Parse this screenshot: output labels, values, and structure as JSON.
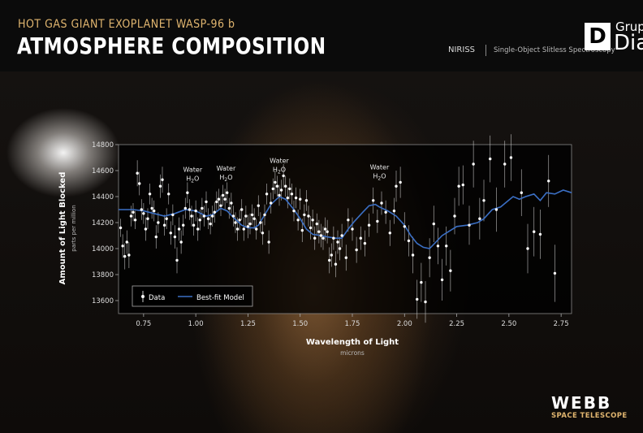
{
  "header": {
    "pre_title": "HOT GAS GIANT EXOPLANET WASP-96 b",
    "title": "ATMOSPHERE COMPOSITION",
    "instrument": "NIRISS",
    "technique": "Single-Object Slitless Spectroscopy"
  },
  "watermark": {
    "mark": "D",
    "top": "Grupo",
    "bottom": "Dia"
  },
  "brand": {
    "name": "WEBB",
    "subtitle": "SPACE TELESCOPE"
  },
  "colors": {
    "accent": "#e0b56f",
    "model": "#3b6fc4",
    "data": "#ffffff"
  },
  "chart_data": {
    "type": "scatter",
    "title": "",
    "xlabel": "Wavelength of Light",
    "xlabel_unit": "microns",
    "ylabel": "Amount of Light Blocked",
    "ylabel_unit": "parts per million",
    "xlim": [
      0.63,
      2.8
    ],
    "ylim": [
      13500,
      14800
    ],
    "xticks": [
      0.75,
      1.0,
      1.25,
      1.5,
      1.75,
      2.0,
      2.25,
      2.5,
      2.75
    ],
    "xtick_labels": [
      "0.75",
      "1.00",
      "1.25",
      "1.50",
      "1.75",
      "2.00",
      "2.25",
      "2.50",
      "2.75"
    ],
    "yticks": [
      13600,
      13800,
      14000,
      14200,
      14400,
      14600,
      14800
    ],
    "ytick_labels": [
      "13600",
      "13800",
      "14000",
      "14200",
      "14400",
      "14600",
      "14800"
    ],
    "legend": {
      "position": "bottom-left",
      "data_label": "Data",
      "model_label": "Best-fit Model"
    },
    "annotations": [
      {
        "line1": "Water",
        "line2": "H",
        "sub": "2",
        "line2_end": "O",
        "x": 0.985,
        "y": 14590
      },
      {
        "line1": "Water",
        "line2": "H",
        "sub": "2",
        "line2_end": "O",
        "x": 1.145,
        "y": 14600
      },
      {
        "line1": "Water",
        "line2": "H",
        "sub": "2",
        "line2_end": "O",
        "x": 1.4,
        "y": 14660
      },
      {
        "line1": "Water",
        "line2": "H",
        "sub": "2",
        "line2_end": "O",
        "x": 1.88,
        "y": 14610
      }
    ],
    "series": [
      {
        "name": "Data",
        "kind": "points",
        "points": [
          [
            0.64,
            14160,
            70
          ],
          [
            0.65,
            14020,
            90
          ],
          [
            0.66,
            13940,
            100
          ],
          [
            0.67,
            14050,
            90
          ],
          [
            0.68,
            13950,
            100
          ],
          [
            0.69,
            14250,
            80
          ],
          [
            0.7,
            14280,
            70
          ],
          [
            0.71,
            14220,
            70
          ],
          [
            0.72,
            14580,
            100
          ],
          [
            0.73,
            14500,
            90
          ],
          [
            0.74,
            14300,
            80
          ],
          [
            0.75,
            14270,
            80
          ],
          [
            0.76,
            14150,
            90
          ],
          [
            0.77,
            14230,
            80
          ],
          [
            0.78,
            14420,
            80
          ],
          [
            0.79,
            14310,
            80
          ],
          [
            0.8,
            14290,
            80
          ],
          [
            0.81,
            14090,
            90
          ],
          [
            0.82,
            14200,
            80
          ],
          [
            0.83,
            14480,
            90
          ],
          [
            0.84,
            14530,
            100
          ],
          [
            0.85,
            14180,
            80
          ],
          [
            0.86,
            14230,
            80
          ],
          [
            0.87,
            14420,
            80
          ],
          [
            0.88,
            14120,
            90
          ],
          [
            0.89,
            14260,
            80
          ],
          [
            0.9,
            14090,
            90
          ],
          [
            0.91,
            13910,
            100
          ],
          [
            0.92,
            14150,
            90
          ],
          [
            0.93,
            14050,
            90
          ],
          [
            0.94,
            14180,
            80
          ],
          [
            0.95,
            14310,
            80
          ],
          [
            0.96,
            14430,
            80
          ],
          [
            0.97,
            14300,
            80
          ],
          [
            0.98,
            14250,
            80
          ],
          [
            0.99,
            14180,
            80
          ],
          [
            1.0,
            14290,
            80
          ],
          [
            1.01,
            14150,
            90
          ],
          [
            1.02,
            14220,
            80
          ],
          [
            1.03,
            14310,
            80
          ],
          [
            1.04,
            14250,
            80
          ],
          [
            1.05,
            14360,
            80
          ],
          [
            1.06,
            14230,
            80
          ],
          [
            1.07,
            14190,
            80
          ],
          [
            1.08,
            14250,
            80
          ],
          [
            1.09,
            14280,
            80
          ],
          [
            1.1,
            14360,
            80
          ],
          [
            1.11,
            14380,
            80
          ],
          [
            1.12,
            14330,
            80
          ],
          [
            1.13,
            14410,
            80
          ],
          [
            1.14,
            14380,
            80
          ],
          [
            1.15,
            14430,
            80
          ],
          [
            1.16,
            14310,
            80
          ],
          [
            1.17,
            14350,
            80
          ],
          [
            1.18,
            14250,
            80
          ],
          [
            1.19,
            14200,
            80
          ],
          [
            1.2,
            14150,
            90
          ],
          [
            1.21,
            14220,
            80
          ],
          [
            1.22,
            14300,
            80
          ],
          [
            1.23,
            14150,
            90
          ],
          [
            1.24,
            14250,
            80
          ],
          [
            1.25,
            14170,
            90
          ],
          [
            1.26,
            14190,
            80
          ],
          [
            1.27,
            14260,
            80
          ],
          [
            1.28,
            14230,
            80
          ],
          [
            1.29,
            14150,
            80
          ],
          [
            1.3,
            14330,
            80
          ],
          [
            1.31,
            14200,
            80
          ],
          [
            1.32,
            14120,
            90
          ],
          [
            1.33,
            14260,
            80
          ],
          [
            1.34,
            14420,
            80
          ],
          [
            1.35,
            14050,
            90
          ],
          [
            1.36,
            14350,
            80
          ],
          [
            1.37,
            14460,
            80
          ],
          [
            1.38,
            14510,
            90
          ],
          [
            1.39,
            14480,
            80
          ],
          [
            1.4,
            14410,
            80
          ],
          [
            1.41,
            14450,
            80
          ],
          [
            1.42,
            14560,
            90
          ],
          [
            1.43,
            14480,
            80
          ],
          [
            1.44,
            14390,
            80
          ],
          [
            1.45,
            14460,
            80
          ],
          [
            1.46,
            14420,
            80
          ],
          [
            1.47,
            14290,
            80
          ],
          [
            1.48,
            14390,
            80
          ],
          [
            1.49,
            14220,
            80
          ],
          [
            1.5,
            14380,
            80
          ],
          [
            1.51,
            14140,
            90
          ],
          [
            1.52,
            14260,
            80
          ],
          [
            1.53,
            14370,
            80
          ],
          [
            1.54,
            14250,
            80
          ],
          [
            1.55,
            14160,
            90
          ],
          [
            1.56,
            14220,
            80
          ],
          [
            1.57,
            14080,
            90
          ],
          [
            1.58,
            14190,
            80
          ],
          [
            1.59,
            14130,
            90
          ],
          [
            1.6,
            14100,
            90
          ],
          [
            1.61,
            14080,
            90
          ],
          [
            1.62,
            14150,
            90
          ],
          [
            1.63,
            14130,
            90
          ],
          [
            1.64,
            13910,
            100
          ],
          [
            1.65,
            13950,
            90
          ],
          [
            1.66,
            14080,
            90
          ],
          [
            1.67,
            13880,
            100
          ],
          [
            1.68,
            14050,
            90
          ],
          [
            1.69,
            14000,
            90
          ],
          [
            1.7,
            14100,
            90
          ],
          [
            1.72,
            13930,
            100
          ],
          [
            1.73,
            14220,
            90
          ],
          [
            1.75,
            14150,
            90
          ],
          [
            1.77,
            13990,
            100
          ],
          [
            1.79,
            14080,
            90
          ],
          [
            1.81,
            14040,
            100
          ],
          [
            1.83,
            14180,
            90
          ],
          [
            1.85,
            14370,
            100
          ],
          [
            1.87,
            14210,
            90
          ],
          [
            1.89,
            14350,
            90
          ],
          [
            1.91,
            14280,
            90
          ],
          [
            1.93,
            14120,
            100
          ],
          [
            1.95,
            14290,
            100
          ],
          [
            1.96,
            14480,
            120
          ],
          [
            1.98,
            14510,
            120
          ],
          [
            2.0,
            14170,
            110
          ],
          [
            2.02,
            14060,
            120
          ],
          [
            2.04,
            13950,
            140
          ],
          [
            2.06,
            13610,
            150
          ],
          [
            2.08,
            13740,
            150
          ],
          [
            2.1,
            13590,
            160
          ],
          [
            2.12,
            13930,
            150
          ],
          [
            2.14,
            14190,
            140
          ],
          [
            2.16,
            14020,
            140
          ],
          [
            2.18,
            13760,
            160
          ],
          [
            2.2,
            14020,
            150
          ],
          [
            2.22,
            13830,
            160
          ],
          [
            2.24,
            14250,
            140
          ],
          [
            2.26,
            14480,
            150
          ],
          [
            2.28,
            14490,
            150
          ],
          [
            2.31,
            14180,
            150
          ],
          [
            2.33,
            14650,
            180
          ],
          [
            2.36,
            14230,
            160
          ],
          [
            2.38,
            14370,
            160
          ],
          [
            2.41,
            14690,
            180
          ],
          [
            2.44,
            14300,
            170
          ],
          [
            2.48,
            14650,
            180
          ],
          [
            2.51,
            14700,
            180
          ],
          [
            2.56,
            14430,
            180
          ],
          [
            2.59,
            14000,
            190
          ],
          [
            2.62,
            14130,
            190
          ],
          [
            2.65,
            14110,
            190
          ],
          [
            2.69,
            14520,
            200
          ],
          [
            2.72,
            13810,
            220
          ]
        ]
      },
      {
        "name": "Best-fit Model",
        "kind": "line",
        "points": [
          [
            0.63,
            14300
          ],
          [
            0.7,
            14300
          ],
          [
            0.75,
            14290
          ],
          [
            0.8,
            14270
          ],
          [
            0.85,
            14250
          ],
          [
            0.9,
            14270
          ],
          [
            0.95,
            14300
          ],
          [
            1.0,
            14290
          ],
          [
            1.05,
            14250
          ],
          [
            1.08,
            14260
          ],
          [
            1.12,
            14310
          ],
          [
            1.15,
            14290
          ],
          [
            1.18,
            14240
          ],
          [
            1.22,
            14180
          ],
          [
            1.25,
            14160
          ],
          [
            1.28,
            14160
          ],
          [
            1.3,
            14180
          ],
          [
            1.33,
            14260
          ],
          [
            1.36,
            14340
          ],
          [
            1.4,
            14400
          ],
          [
            1.43,
            14380
          ],
          [
            1.47,
            14300
          ],
          [
            1.5,
            14230
          ],
          [
            1.53,
            14150
          ],
          [
            1.56,
            14110
          ],
          [
            1.6,
            14100
          ],
          [
            1.63,
            14090
          ],
          [
            1.67,
            14080
          ],
          [
            1.7,
            14080
          ],
          [
            1.73,
            14150
          ],
          [
            1.76,
            14210
          ],
          [
            1.8,
            14280
          ],
          [
            1.83,
            14330
          ],
          [
            1.86,
            14340
          ],
          [
            1.88,
            14320
          ],
          [
            1.92,
            14290
          ],
          [
            1.96,
            14250
          ],
          [
            2.0,
            14180
          ],
          [
            2.03,
            14100
          ],
          [
            2.06,
            14040
          ],
          [
            2.09,
            14010
          ],
          [
            2.12,
            14000
          ],
          [
            2.15,
            14050
          ],
          [
            2.18,
            14100
          ],
          [
            2.21,
            14130
          ],
          [
            2.25,
            14170
          ],
          [
            2.3,
            14180
          ],
          [
            2.35,
            14200
          ],
          [
            2.38,
            14230
          ],
          [
            2.42,
            14300
          ],
          [
            2.46,
            14320
          ],
          [
            2.49,
            14360
          ],
          [
            2.52,
            14400
          ],
          [
            2.55,
            14380
          ],
          [
            2.58,
            14400
          ],
          [
            2.62,
            14420
          ],
          [
            2.65,
            14370
          ],
          [
            2.68,
            14430
          ],
          [
            2.72,
            14420
          ],
          [
            2.76,
            14450
          ],
          [
            2.8,
            14430
          ]
        ]
      }
    ]
  }
}
